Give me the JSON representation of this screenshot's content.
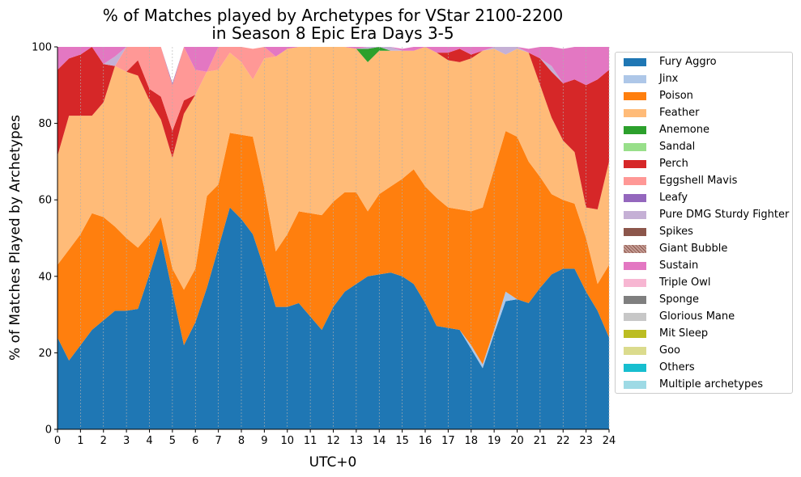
{
  "chart_data": {
    "type": "area",
    "stacked": true,
    "title": "% of Matches played by Archetypes for VStar 2100-2200\nin Season 8 Epic Era Days 3-5",
    "xlabel": "UTC+0",
    "ylabel": "% of Matches Played by Archetypes",
    "xlim": [
      0,
      24
    ],
    "ylim": [
      0,
      100
    ],
    "xticks": [
      "0",
      "1",
      "2",
      "3",
      "4",
      "5",
      "6",
      "7",
      "8",
      "9",
      "10",
      "11",
      "12",
      "13",
      "14",
      "15",
      "16",
      "17",
      "18",
      "19",
      "20",
      "21",
      "22",
      "23",
      "24"
    ],
    "yticks": [
      "0",
      "20",
      "40",
      "60",
      "80",
      "100"
    ],
    "vertical_grid": true,
    "legend_position": "right",
    "x": [
      0,
      0.5,
      1,
      1.5,
      2,
      2.5,
      3,
      3.5,
      4,
      4.5,
      5,
      5.5,
      6,
      6.5,
      7,
      7.5,
      8,
      8.5,
      9,
      9.5,
      10,
      10.5,
      11,
      11.5,
      12,
      12.5,
      13,
      13.5,
      14,
      14.5,
      15,
      15.5,
      16,
      16.5,
      17,
      17.5,
      18,
      18.5,
      19,
      19.5,
      20,
      20.5,
      21,
      21.5,
      22,
      22.5,
      23,
      23.5,
      24
    ],
    "series": [
      {
        "name": "Fury Aggro",
        "color": "#1f77b4",
        "values": [
          24,
          18,
          22,
          26,
          28.5,
          31,
          31,
          31.5,
          40.5,
          50,
          36,
          22,
          28,
          37,
          47.5,
          58,
          55,
          51,
          42,
          32,
          32,
          33,
          29.5,
          26,
          32,
          36,
          38,
          40,
          40.5,
          41,
          40,
          38,
          33,
          27,
          26.5,
          26,
          21,
          16,
          25,
          33.5,
          34,
          33,
          37,
          40.5,
          42,
          42,
          36,
          31,
          24
        ]
      },
      {
        "name": "Jinx",
        "color": "#aec7e8",
        "values": [
          0,
          0,
          0,
          0,
          0,
          0,
          0,
          0,
          0,
          0,
          0,
          0,
          0,
          0,
          0,
          0,
          0,
          0,
          0,
          0,
          0,
          0,
          0,
          0,
          0,
          0,
          0,
          0,
          0,
          0,
          0,
          0,
          0,
          0,
          0,
          0,
          1,
          1,
          1,
          2.5,
          0,
          0,
          0,
          0,
          0,
          0,
          0,
          0,
          0
        ]
      },
      {
        "name": "Poison",
        "color": "#ff7f0e",
        "values": [
          19,
          29,
          29,
          30.5,
          27,
          22,
          19,
          16,
          10.5,
          5.5,
          6,
          14.5,
          14,
          24,
          16.5,
          19.5,
          22,
          25.5,
          21,
          14.5,
          19,
          24,
          27,
          30,
          27.5,
          26,
          24,
          17,
          21,
          22.5,
          25.5,
          30,
          30.5,
          33.5,
          31.5,
          31.5,
          35,
          41,
          42,
          42,
          42.5,
          37,
          29,
          21,
          18,
          17,
          14,
          7,
          19
        ]
      },
      {
        "name": "Feather",
        "color": "#ffbb78",
        "values": [
          28.5,
          35,
          31,
          25.5,
          30,
          42,
          43.5,
          45,
          35,
          25.5,
          29,
          46,
          45.5,
          32.5,
          30,
          21,
          19,
          15,
          34,
          51,
          48.5,
          43,
          43.5,
          44,
          40.5,
          38,
          37.5,
          39,
          37.5,
          35.5,
          33.5,
          31,
          36.5,
          38,
          38.5,
          38.5,
          40,
          41,
          31.5,
          20,
          23,
          28.5,
          24,
          20,
          15.5,
          13.5,
          8,
          19.5,
          27
        ]
      },
      {
        "name": "Anemone",
        "color": "#2ca02c",
        "values": [
          0,
          0,
          0,
          0,
          0,
          0,
          0,
          0,
          0,
          0,
          0,
          0,
          0,
          0,
          0,
          0,
          0,
          0,
          0,
          0,
          0,
          0,
          0,
          0,
          0,
          0,
          0,
          3.5,
          1,
          0,
          0,
          0,
          0,
          0,
          0,
          0,
          0,
          0,
          0,
          0,
          0,
          0,
          0,
          0,
          0,
          0,
          0,
          0,
          0
        ]
      },
      {
        "name": "Sandal",
        "color": "#98df8a",
        "values": [
          0,
          0,
          0,
          0,
          0,
          0,
          0,
          0,
          0,
          0,
          0,
          0,
          0,
          0,
          0,
          0,
          0,
          0,
          0,
          0,
          0,
          0,
          0,
          0,
          0,
          0,
          0,
          0,
          0,
          0,
          0,
          0,
          0,
          0,
          0,
          0,
          0,
          0,
          0,
          0,
          0,
          0,
          0,
          0,
          0,
          0,
          0,
          0,
          0
        ]
      },
      {
        "name": "Perch",
        "color": "#d62728",
        "values": [
          22.5,
          15,
          16,
          18,
          10,
          0,
          0,
          4,
          3,
          6,
          7,
          3.5,
          0,
          0,
          0,
          0,
          0,
          0,
          0,
          0,
          0,
          0,
          0,
          0,
          0,
          0,
          0,
          0,
          0,
          0,
          0,
          0,
          0,
          0,
          2,
          3.5,
          1,
          0,
          0,
          0,
          0,
          0,
          7,
          12,
          15,
          19,
          32,
          34,
          24
        ]
      },
      {
        "name": "Eggshell Mavis",
        "color": "#ff9896",
        "values": [
          0,
          0,
          0,
          0,
          0,
          0,
          7,
          9,
          11,
          13,
          12,
          14,
          6.5,
          0,
          6.5,
          1.5,
          4,
          8,
          3,
          0,
          0,
          0,
          0,
          0,
          0,
          0,
          0,
          0,
          0,
          0,
          0,
          0,
          0,
          0,
          0,
          0,
          0,
          0,
          0,
          0,
          0,
          0,
          0,
          0,
          0,
          0,
          0,
          0,
          0
        ]
      },
      {
        "name": "Leafy",
        "color": "#9467bd",
        "values": [
          0,
          0,
          0,
          0,
          0,
          0,
          0,
          0,
          0,
          0,
          0.5,
          0.5,
          0,
          0,
          0,
          0,
          0,
          0,
          0,
          0,
          0,
          0,
          0,
          0,
          0,
          0,
          0,
          0,
          0,
          0,
          0,
          0,
          0,
          0,
          0,
          0,
          0,
          0,
          0,
          0,
          0,
          0,
          0,
          0,
          0,
          0,
          0,
          0,
          0
        ]
      },
      {
        "name": "Pure DMG Sturdy Fighter",
        "color": "#c5b0d5",
        "values": [
          0,
          0,
          0,
          0,
          0,
          2.5,
          0,
          0,
          0,
          0,
          0,
          0,
          0,
          0,
          0,
          0,
          0,
          0,
          0,
          0,
          0,
          0,
          0,
          0,
          0,
          0,
          0,
          0.5,
          0,
          1,
          0,
          0,
          0,
          0,
          0,
          0,
          0,
          0,
          1,
          3.5,
          0.5,
          0,
          0,
          1.5,
          0,
          0,
          0,
          0,
          0
        ]
      },
      {
        "name": "Spikes",
        "color": "#8c564b",
        "values": [
          0,
          0,
          0,
          0,
          0,
          0,
          0,
          0,
          0,
          0,
          0,
          0,
          0,
          0,
          0,
          0,
          0,
          0,
          0,
          0,
          0,
          0,
          0,
          0,
          0,
          0,
          0,
          0,
          0,
          0,
          0,
          0,
          0,
          0,
          0,
          0,
          0,
          0,
          0,
          0,
          0,
          0,
          0,
          0,
          0,
          0,
          0,
          0,
          0
        ]
      },
      {
        "name": "Giant Bubble",
        "color": "#c49c94",
        "pattern": "hatch",
        "values": [
          0,
          0,
          0,
          0,
          0,
          0,
          0,
          0,
          0,
          0,
          0,
          0,
          0,
          0,
          0,
          0,
          0,
          0,
          0,
          0,
          0,
          0,
          0,
          0,
          0,
          0,
          0,
          0,
          0,
          0,
          0,
          0,
          0,
          0,
          0,
          0,
          0,
          0,
          0,
          0,
          0,
          0,
          0,
          0,
          0,
          0,
          0,
          0,
          0
        ]
      },
      {
        "name": "Sustain",
        "color": "#e377c2",
        "values": [
          6,
          3,
          2,
          0,
          4.5,
          2.5,
          1.5,
          1,
          0,
          0,
          0,
          0,
          6,
          6.5,
          0,
          0,
          0,
          0,
          0,
          2.5,
          0.5,
          0,
          0,
          0,
          0,
          0,
          0.5,
          0,
          0,
          0,
          0.5,
          1,
          0,
          1.5,
          1.5,
          0.5,
          2,
          2,
          0,
          0,
          0,
          1,
          3,
          5,
          9,
          8.5,
          10,
          8.5,
          6
        ]
      },
      {
        "name": "Triple Owl",
        "color": "#f7b6d2",
        "values": [
          0,
          0,
          0,
          0,
          0,
          0,
          0,
          0,
          0,
          0,
          0,
          0,
          0,
          0,
          0,
          0,
          0,
          0,
          0,
          0,
          0,
          0,
          0,
          0,
          0,
          0,
          0,
          0,
          0,
          0,
          0,
          0,
          0,
          0,
          0,
          0,
          0,
          0,
          0,
          0,
          0,
          0,
          0,
          0,
          0,
          0,
          0,
          0,
          0
        ]
      },
      {
        "name": "Sponge",
        "color": "#7f7f7f",
        "values": [
          0,
          0,
          0,
          0,
          0,
          0,
          0,
          0,
          0,
          0,
          0,
          0,
          0,
          0,
          0,
          0,
          0,
          0,
          0,
          0,
          0,
          0,
          0,
          0,
          0,
          0,
          0,
          0,
          0,
          0,
          0,
          0,
          0,
          0,
          0,
          0,
          0,
          0,
          0,
          0,
          0,
          0,
          0,
          0,
          0,
          0,
          0,
          0,
          0
        ]
      },
      {
        "name": "Glorious Mane",
        "color": "#c7c7c7",
        "values": [
          0,
          0,
          0,
          0,
          0,
          0,
          0,
          0,
          0,
          0,
          0,
          0,
          0,
          0,
          0,
          0,
          0,
          0,
          0,
          0,
          0,
          0,
          0,
          0,
          0,
          0,
          0,
          0,
          0,
          0,
          0,
          0,
          0,
          0,
          0,
          0,
          0,
          0,
          0,
          0,
          0,
          0,
          0,
          0,
          0,
          0,
          0,
          0,
          0
        ]
      },
      {
        "name": "Mit Sleep",
        "color": "#bcbd22",
        "values": [
          0,
          0,
          0,
          0,
          0,
          0,
          0,
          0,
          0,
          0,
          0,
          0,
          0,
          0,
          0,
          0,
          0,
          0,
          0,
          0,
          0,
          0,
          0,
          0,
          0,
          0,
          0,
          0,
          0,
          0,
          0,
          0,
          0,
          0,
          0,
          0,
          0,
          0,
          0,
          0,
          0,
          0,
          0,
          0,
          0,
          0,
          0,
          0,
          0
        ]
      },
      {
        "name": "Goo",
        "color": "#dbdb8d",
        "values": [
          0,
          0,
          0,
          0,
          0,
          0,
          0,
          0,
          0,
          0,
          0,
          0,
          0,
          0,
          0,
          0,
          0,
          0,
          0,
          0,
          0,
          0,
          0,
          0,
          0,
          0,
          0,
          0,
          0,
          0,
          0,
          0,
          0,
          0,
          0,
          0,
          0,
          0,
          0,
          0,
          0,
          0,
          0,
          0,
          0,
          0,
          0,
          0,
          0
        ]
      },
      {
        "name": "Others",
        "color": "#17becf",
        "values": [
          0,
          0,
          0,
          0,
          0,
          0,
          0,
          0,
          0,
          0,
          0,
          0,
          0,
          0,
          0,
          0,
          0,
          0,
          0,
          0,
          0,
          0,
          0,
          0,
          0,
          0,
          0,
          0,
          0,
          0,
          0,
          0,
          0,
          0,
          0,
          0,
          0,
          0,
          0,
          0,
          0,
          0,
          0,
          0,
          0,
          0,
          0,
          0,
          0
        ]
      },
      {
        "name": "Multiple archetypes",
        "color": "#9edae5",
        "values": [
          0,
          0,
          0,
          0,
          0,
          0,
          0,
          0,
          0,
          0,
          0,
          0,
          0,
          0,
          0,
          0,
          0,
          0,
          0,
          0,
          0,
          0,
          0,
          0,
          0,
          0,
          0,
          0,
          0,
          0,
          0,
          0,
          0,
          0,
          0,
          0,
          0,
          0,
          0,
          0,
          0,
          0,
          0,
          0,
          0,
          0,
          0,
          0,
          0
        ]
      }
    ]
  }
}
